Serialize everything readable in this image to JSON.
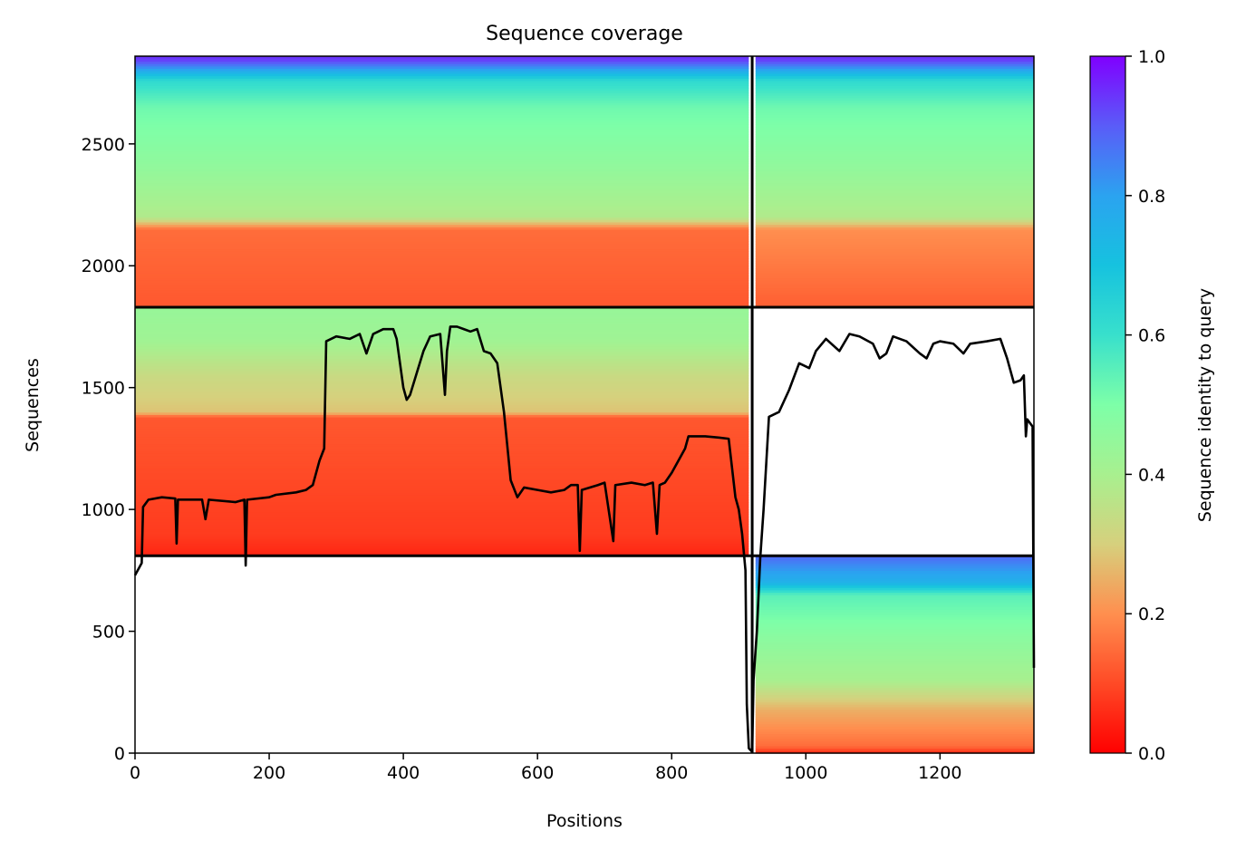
{
  "chart_data": {
    "type": "heatmap",
    "title": "Sequence coverage",
    "xlabel": "Positions",
    "ylabel": "Sequences",
    "xlim": [
      0,
      1340
    ],
    "ylim": [
      0,
      2860
    ],
    "xticks": [
      0,
      200,
      400,
      600,
      800,
      1000,
      1200
    ],
    "yticks": [
      0,
      500,
      1000,
      1500,
      2000,
      2500
    ],
    "colorbar": {
      "label": "Sequence identity to query",
      "range": [
        0.0,
        1.0
      ],
      "ticks": [
        "0.0",
        "0.2",
        "0.4",
        "0.6",
        "0.8",
        "1.0"
      ],
      "colormap": "rainbow_r"
    },
    "grid": false,
    "separators": {
      "vertical_x": [
        920
      ],
      "horizontal_segments": [
        {
          "y": 1830,
          "x_from": 0,
          "x_to": 1340
        },
        {
          "y": 810,
          "x_from": 0,
          "x_to": 1340
        }
      ]
    },
    "blocks": [
      {
        "name": "top-left",
        "x_range": [
          0,
          915
        ],
        "y_range": [
          1830,
          2860
        ]
      },
      {
        "name": "top-right",
        "x_range": [
          925,
          1340
        ],
        "y_range": [
          1830,
          2860
        ]
      },
      {
        "name": "middle-left",
        "x_range": [
          0,
          915
        ],
        "y_range": [
          810,
          1830
        ]
      },
      {
        "name": "bottom-right",
        "x_range": [
          925,
          1340
        ],
        "y_range": [
          0,
          810
        ]
      }
    ],
    "coverage_line": {
      "color": "#000000",
      "points": [
        [
          0,
          730
        ],
        [
          10,
          780
        ],
        [
          12,
          1010
        ],
        [
          20,
          1040
        ],
        [
          40,
          1050
        ],
        [
          60,
          1045
        ],
        [
          62,
          860
        ],
        [
          64,
          1040
        ],
        [
          100,
          1040
        ],
        [
          105,
          960
        ],
        [
          110,
          1040
        ],
        [
          150,
          1030
        ],
        [
          163,
          1040
        ],
        [
          165,
          770
        ],
        [
          167,
          1040
        ],
        [
          200,
          1050
        ],
        [
          210,
          1060
        ],
        [
          240,
          1070
        ],
        [
          255,
          1080
        ],
        [
          265,
          1100
        ],
        [
          275,
          1200
        ],
        [
          282,
          1250
        ],
        [
          285,
          1690
        ],
        [
          300,
          1710
        ],
        [
          320,
          1700
        ],
        [
          335,
          1720
        ],
        [
          345,
          1640
        ],
        [
          355,
          1720
        ],
        [
          370,
          1740
        ],
        [
          385,
          1740
        ],
        [
          390,
          1700
        ],
        [
          395,
          1600
        ],
        [
          400,
          1500
        ],
        [
          405,
          1450
        ],
        [
          410,
          1470
        ],
        [
          420,
          1560
        ],
        [
          430,
          1650
        ],
        [
          440,
          1710
        ],
        [
          455,
          1720
        ],
        [
          462,
          1470
        ],
        [
          465,
          1650
        ],
        [
          470,
          1750
        ],
        [
          480,
          1750
        ],
        [
          490,
          1740
        ],
        [
          500,
          1730
        ],
        [
          510,
          1740
        ],
        [
          520,
          1650
        ],
        [
          530,
          1640
        ],
        [
          540,
          1600
        ],
        [
          550,
          1400
        ],
        [
          560,
          1120
        ],
        [
          570,
          1050
        ],
        [
          580,
          1090
        ],
        [
          600,
          1080
        ],
        [
          620,
          1070
        ],
        [
          640,
          1080
        ],
        [
          650,
          1100
        ],
        [
          660,
          1100
        ],
        [
          663,
          830
        ],
        [
          666,
          1080
        ],
        [
          690,
          1100
        ],
        [
          700,
          1110
        ],
        [
          713,
          870
        ],
        [
          716,
          1100
        ],
        [
          740,
          1110
        ],
        [
          760,
          1100
        ],
        [
          772,
          1110
        ],
        [
          778,
          900
        ],
        [
          782,
          1100
        ],
        [
          790,
          1110
        ],
        [
          800,
          1150
        ],
        [
          810,
          1200
        ],
        [
          820,
          1250
        ],
        [
          825,
          1300
        ],
        [
          850,
          1300
        ],
        [
          870,
          1295
        ],
        [
          885,
          1290
        ],
        [
          895,
          1050
        ],
        [
          900,
          1000
        ],
        [
          905,
          900
        ],
        [
          910,
          750
        ],
        [
          912,
          200
        ],
        [
          915,
          20
        ],
        [
          920,
          5
        ],
        [
          922,
          300
        ],
        [
          927,
          500
        ],
        [
          932,
          800
        ],
        [
          937,
          1000
        ],
        [
          945,
          1380
        ],
        [
          960,
          1400
        ],
        [
          975,
          1490
        ],
        [
          990,
          1600
        ],
        [
          1005,
          1580
        ],
        [
          1015,
          1650
        ],
        [
          1030,
          1700
        ],
        [
          1050,
          1650
        ],
        [
          1065,
          1720
        ],
        [
          1080,
          1710
        ],
        [
          1100,
          1680
        ],
        [
          1110,
          1620
        ],
        [
          1120,
          1640
        ],
        [
          1130,
          1710
        ],
        [
          1150,
          1690
        ],
        [
          1170,
          1640
        ],
        [
          1180,
          1620
        ],
        [
          1190,
          1680
        ],
        [
          1200,
          1690
        ],
        [
          1220,
          1680
        ],
        [
          1235,
          1640
        ],
        [
          1245,
          1680
        ],
        [
          1270,
          1690
        ],
        [
          1290,
          1700
        ],
        [
          1300,
          1620
        ],
        [
          1310,
          1520
        ],
        [
          1320,
          1530
        ],
        [
          1325,
          1550
        ],
        [
          1328,
          1300
        ],
        [
          1330,
          1370
        ],
        [
          1338,
          1340
        ],
        [
          1340,
          350
        ]
      ]
    }
  }
}
